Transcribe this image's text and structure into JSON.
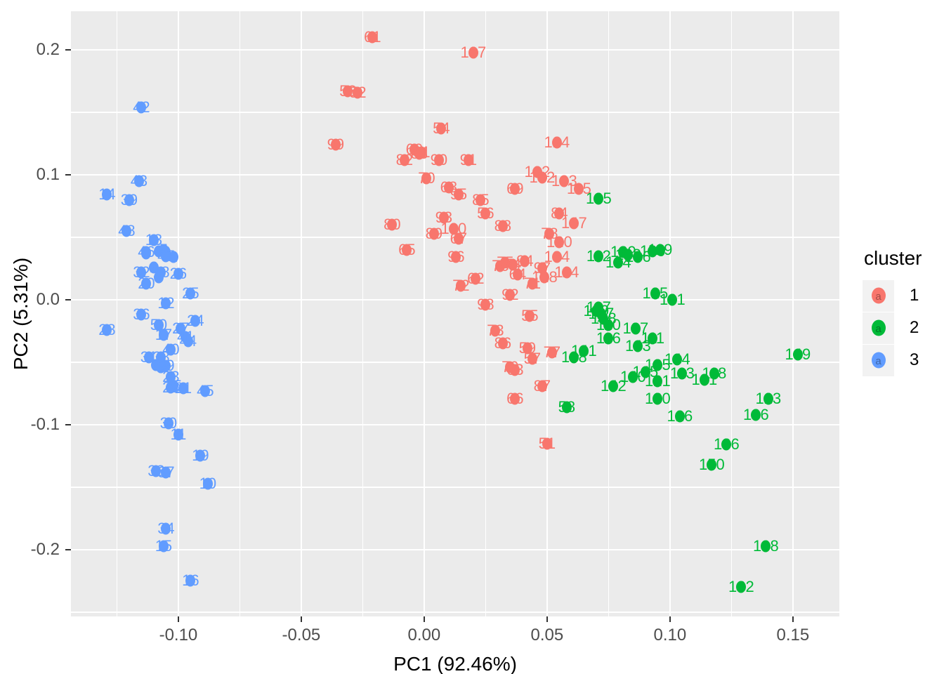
{
  "chart_data": {
    "type": "scatter",
    "title": "",
    "xlabel": "PC1 (92.46%)",
    "ylabel": "PC2 (5.31%)",
    "panel_bg": "#EBEBEB",
    "grid_color": "#FFFFFF",
    "tick_color": "#333333",
    "tick_label_color": "#4D4D4D",
    "x_domain": [
      -0.1437,
      0.1689
    ],
    "y_domain": [
      -0.2534,
      0.2309
    ],
    "x_tick_values": [
      -0.1,
      -0.05,
      0.0,
      0.05,
      0.1,
      0.15
    ],
    "x_tick_labels": [
      "-0.10",
      "-0.05",
      "0.00",
      "0.05",
      "0.10",
      "0.15"
    ],
    "y_tick_values": [
      -0.2,
      -0.1,
      0.0,
      0.1,
      0.2
    ],
    "y_tick_labels": [
      "-0.2",
      "-0.1",
      "0.0",
      "0.1",
      "0.2"
    ],
    "x_minor_values": [
      -0.125,
      -0.075,
      -0.025,
      0.025,
      0.075,
      0.125
    ],
    "y_minor_values": [
      -0.25,
      -0.15,
      -0.05,
      0.05,
      0.15
    ],
    "legend": {
      "title": "cluster",
      "glyph_letter": "a",
      "entries": [
        {
          "label": "1",
          "color": "#F8766D"
        },
        {
          "label": "2",
          "color": "#00BA38"
        },
        {
          "label": "3",
          "color": "#619CFF"
        }
      ]
    },
    "cluster_colors": {
      "1": "#F8766D",
      "2": "#00BA38",
      "3": "#619CFF"
    },
    "points": [
      {
        "id": "1",
        "c": 3,
        "x": -0.102,
        "y": 0.034
      },
      {
        "id": "2",
        "c": 3,
        "x": -0.11,
        "y": 0.026
      },
      {
        "id": "3",
        "c": 3,
        "x": -0.108,
        "y": 0.039
      },
      {
        "id": "4",
        "c": 3,
        "x": -0.113,
        "y": 0.037
      },
      {
        "id": "5",
        "c": 3,
        "x": -0.106,
        "y": 0.04
      },
      {
        "id": "6",
        "c": 3,
        "x": -0.105,
        "y": 0.038
      },
      {
        "id": "7",
        "c": 3,
        "x": -0.108,
        "y": 0.018
      },
      {
        "id": "8",
        "c": 3,
        "x": -0.109,
        "y": -0.052
      },
      {
        "id": "9",
        "c": 3,
        "x": -0.107,
        "y": -0.054
      },
      {
        "id": "10",
        "c": 3,
        "x": -0.088,
        "y": -0.147
      },
      {
        "id": "11",
        "c": 3,
        "x": -0.1,
        "y": -0.108
      },
      {
        "id": "12",
        "c": 3,
        "x": -0.105,
        "y": -0.003
      },
      {
        "id": "13",
        "c": 3,
        "x": -0.11,
        "y": 0.048
      },
      {
        "id": "14",
        "c": 3,
        "x": -0.129,
        "y": 0.084
      },
      {
        "id": "15",
        "c": 3,
        "x": -0.106,
        "y": -0.197
      },
      {
        "id": "16",
        "c": 3,
        "x": -0.095,
        "y": -0.225
      },
      {
        "id": "17",
        "c": 3,
        "x": -0.106,
        "y": -0.028
      },
      {
        "id": "18",
        "c": 3,
        "x": -0.107,
        "y": 0.022
      },
      {
        "id": "19",
        "c": 3,
        "x": -0.091,
        "y": -0.125
      },
      {
        "id": "20",
        "c": 3,
        "x": -0.113,
        "y": 0.013
      },
      {
        "id": "21",
        "c": 3,
        "x": -0.098,
        "y": -0.071
      },
      {
        "id": "22",
        "c": 3,
        "x": -0.103,
        "y": -0.07
      },
      {
        "id": "23",
        "c": 3,
        "x": -0.103,
        "y": -0.062
      },
      {
        "id": "24",
        "c": 3,
        "x": -0.093,
        "y": -0.017
      },
      {
        "id": "25",
        "c": 3,
        "x": -0.095,
        "y": 0.005
      },
      {
        "id": "26",
        "c": 3,
        "x": -0.1,
        "y": 0.021
      },
      {
        "id": "27",
        "c": 3,
        "x": -0.099,
        "y": -0.023
      },
      {
        "id": "28",
        "c": 3,
        "x": -0.129,
        "y": -0.024
      },
      {
        "id": "29",
        "c": 3,
        "x": -0.105,
        "y": -0.053
      },
      {
        "id": "30",
        "c": 3,
        "x": -0.104,
        "y": -0.099
      },
      {
        "id": "31",
        "c": 3,
        "x": -0.112,
        "y": -0.046
      },
      {
        "id": "32",
        "c": 3,
        "x": -0.115,
        "y": 0.022
      },
      {
        "id": "33",
        "c": 3,
        "x": -0.109,
        "y": -0.137
      },
      {
        "id": "34",
        "c": 3,
        "x": -0.105,
        "y": -0.183
      },
      {
        "id": "35",
        "c": 3,
        "x": -0.102,
        "y": -0.069
      },
      {
        "id": "36",
        "c": 3,
        "x": -0.115,
        "y": -0.012
      },
      {
        "id": "37",
        "c": 3,
        "x": -0.105,
        "y": -0.138
      },
      {
        "id": "38",
        "c": 3,
        "x": -0.107,
        "y": -0.046
      },
      {
        "id": "39",
        "c": 3,
        "x": -0.12,
        "y": 0.08
      },
      {
        "id": "40",
        "c": 3,
        "x": -0.103,
        "y": -0.04
      },
      {
        "id": "41",
        "c": 3,
        "x": -0.097,
        "y": -0.03
      },
      {
        "id": "42",
        "c": 3,
        "x": -0.115,
        "y": 0.154
      },
      {
        "id": "43",
        "c": 3,
        "x": -0.116,
        "y": 0.095
      },
      {
        "id": "44",
        "c": 3,
        "x": -0.096,
        "y": -0.033
      },
      {
        "id": "45",
        "c": 3,
        "x": -0.089,
        "y": -0.073
      },
      {
        "id": "46",
        "c": 3,
        "x": -0.113,
        "y": 0.038
      },
      {
        "id": "47",
        "c": 3,
        "x": -0.105,
        "y": 0.035
      },
      {
        "id": "48",
        "c": 3,
        "x": -0.121,
        "y": 0.055
      },
      {
        "id": "49",
        "c": 3,
        "x": -0.107,
        "y": -0.054
      },
      {
        "id": "50",
        "c": 3,
        "x": -0.108,
        "y": -0.02
      },
      {
        "id": "51",
        "c": 1,
        "x": 0.05,
        "y": -0.115
      },
      {
        "id": "52",
        "c": 1,
        "x": -0.027,
        "y": 0.166
      },
      {
        "id": "53",
        "c": 1,
        "x": -0.031,
        "y": 0.167
      },
      {
        "id": "54",
        "c": 1,
        "x": 0.007,
        "y": 0.137
      },
      {
        "id": "55",
        "c": 1,
        "x": 0.043,
        "y": -0.013
      },
      {
        "id": "56",
        "c": 1,
        "x": 0.025,
        "y": 0.069
      },
      {
        "id": "57",
        "c": 1,
        "x": 0.044,
        "y": -0.047
      },
      {
        "id": "59",
        "c": 1,
        "x": 0.042,
        "y": -0.039
      },
      {
        "id": "60",
        "c": 1,
        "x": -0.004,
        "y": 0.12
      },
      {
        "id": "61",
        "c": 1,
        "x": -0.021,
        "y": 0.21
      },
      {
        "id": "62",
        "c": 1,
        "x": 0.021,
        "y": 0.017
      },
      {
        "id": "63",
        "c": 1,
        "x": 0.037,
        "y": -0.056
      },
      {
        "id": "64",
        "c": 1,
        "x": 0.038,
        "y": 0.02
      },
      {
        "id": "65",
        "c": 1,
        "x": -0.007,
        "y": 0.04
      },
      {
        "id": "66",
        "c": 1,
        "x": 0.037,
        "y": -0.079
      },
      {
        "id": "67",
        "c": 1,
        "x": 0.014,
        "y": 0.049
      },
      {
        "id": "68",
        "c": 1,
        "x": 0.01,
        "y": 0.09
      },
      {
        "id": "69",
        "c": 1,
        "x": 0.037,
        "y": 0.089
      },
      {
        "id": "70",
        "c": 1,
        "x": 0.001,
        "y": 0.097
      },
      {
        "id": "71",
        "c": 1,
        "x": 0.044,
        "y": 0.013
      },
      {
        "id": "72",
        "c": 1,
        "x": 0.015,
        "y": 0.011
      },
      {
        "id": "73",
        "c": 1,
        "x": 0.029,
        "y": -0.025
      },
      {
        "id": "74",
        "c": 1,
        "x": 0.036,
        "y": 0.028
      },
      {
        "id": "75",
        "c": 1,
        "x": 0.033,
        "y": 0.03
      },
      {
        "id": "76",
        "c": 1,
        "x": 0.031,
        "y": 0.027
      },
      {
        "id": "77",
        "c": 1,
        "x": 0.052,
        "y": -0.042
      },
      {
        "id": "78",
        "c": 1,
        "x": 0.051,
        "y": 0.053
      },
      {
        "id": "79",
        "c": 1,
        "x": 0.035,
        "y": -0.054
      },
      {
        "id": "80",
        "c": 1,
        "x": -0.013,
        "y": 0.06
      },
      {
        "id": "81",
        "c": 1,
        "x": -0.001,
        "y": 0.118
      },
      {
        "id": "82",
        "c": 1,
        "x": -0.008,
        "y": 0.112
      },
      {
        "id": "83",
        "c": 1,
        "x": -0.002,
        "y": 0.117
      },
      {
        "id": "84",
        "c": 1,
        "x": 0.055,
        "y": 0.069
      },
      {
        "id": "85",
        "c": 1,
        "x": 0.023,
        "y": 0.08
      },
      {
        "id": "86",
        "c": 1,
        "x": 0.032,
        "y": -0.035
      },
      {
        "id": "87",
        "c": 1,
        "x": 0.048,
        "y": -0.069
      },
      {
        "id": "88",
        "c": 1,
        "x": 0.032,
        "y": 0.059
      },
      {
        "id": "89",
        "c": 1,
        "x": 0.004,
        "y": 0.053
      },
      {
        "id": "90",
        "c": 1,
        "x": 0.006,
        "y": 0.112
      },
      {
        "id": "91",
        "c": 1,
        "x": 0.018,
        "y": 0.112
      },
      {
        "id": "92",
        "c": 1,
        "x": 0.035,
        "y": 0.004
      },
      {
        "id": "93",
        "c": 1,
        "x": 0.008,
        "y": 0.066
      },
      {
        "id": "94",
        "c": 1,
        "x": 0.041,
        "y": 0.031
      },
      {
        "id": "95",
        "c": 1,
        "x": 0.014,
        "y": 0.084
      },
      {
        "id": "96",
        "c": 1,
        "x": 0.013,
        "y": 0.034
      },
      {
        "id": "97",
        "c": 1,
        "x": 0.048,
        "y": 0.025
      },
      {
        "id": "98",
        "c": 1,
        "x": 0.025,
        "y": -0.004
      },
      {
        "id": "99",
        "c": 1,
        "x": -0.036,
        "y": 0.124
      },
      {
        "id": "100",
        "c": 1,
        "x": 0.012,
        "y": 0.057
      },
      {
        "id": "102",
        "c": 1,
        "x": 0.048,
        "y": 0.098
      },
      {
        "id": "103",
        "c": 1,
        "x": 0.057,
        "y": 0.095
      },
      {
        "id": "107",
        "c": 1,
        "x": 0.02,
        "y": 0.198
      },
      {
        "id": "114",
        "c": 1,
        "x": 0.058,
        "y": 0.022
      },
      {
        "id": "115",
        "c": 1,
        "x": 0.063,
        "y": 0.089
      },
      {
        "id": "120",
        "c": 1,
        "x": 0.055,
        "y": 0.046
      },
      {
        "id": "122",
        "c": 1,
        "x": 0.046,
        "y": 0.102
      },
      {
        "id": "124",
        "c": 1,
        "x": 0.054,
        "y": 0.126
      },
      {
        "id": "128",
        "c": 1,
        "x": 0.049,
        "y": 0.018
      },
      {
        "id": "134",
        "c": 1,
        "x": 0.054,
        "y": 0.034
      },
      {
        "id": "147",
        "c": 1,
        "x": 0.061,
        "y": 0.061
      },
      {
        "id": "58",
        "c": 2,
        "x": 0.058,
        "y": -0.086
      },
      {
        "id": "101",
        "c": 2,
        "x": 0.101,
        "y": 0.0
      },
      {
        "id": "104",
        "c": 2,
        "x": 0.079,
        "y": 0.03
      },
      {
        "id": "105",
        "c": 2,
        "x": 0.071,
        "y": 0.081
      },
      {
        "id": "106",
        "c": 2,
        "x": 0.135,
        "y": -0.092
      },
      {
        "id": "108",
        "c": 2,
        "x": 0.139,
        "y": -0.197
      },
      {
        "id": "109",
        "c": 2,
        "x": 0.093,
        "y": 0.039
      },
      {
        "id": "110",
        "c": 2,
        "x": 0.075,
        "y": -0.02
      },
      {
        "id": "111",
        "c": 2,
        "x": 0.093,
        "y": -0.031
      },
      {
        "id": "112",
        "c": 2,
        "x": 0.071,
        "y": 0.035
      },
      {
        "id": "113",
        "c": 2,
        "x": 0.105,
        "y": -0.059
      },
      {
        "id": "116",
        "c": 2,
        "x": 0.075,
        "y": -0.031
      },
      {
        "id": "117",
        "c": 2,
        "x": 0.071,
        "y": -0.006
      },
      {
        "id": "118",
        "c": 2,
        "x": 0.118,
        "y": -0.059
      },
      {
        "id": "119",
        "c": 2,
        "x": 0.096,
        "y": 0.04
      },
      {
        "id": "121",
        "c": 2,
        "x": 0.095,
        "y": -0.065
      },
      {
        "id": "123",
        "c": 2,
        "x": 0.14,
        "y": -0.079
      },
      {
        "id": "125",
        "c": 2,
        "x": 0.094,
        "y": 0.005
      },
      {
        "id": "126",
        "c": 2,
        "x": 0.104,
        "y": -0.093
      },
      {
        "id": "127",
        "c": 2,
        "x": 0.072,
        "y": -0.011
      },
      {
        "id": "129",
        "c": 2,
        "x": 0.081,
        "y": 0.038
      },
      {
        "id": "130",
        "c": 2,
        "x": 0.095,
        "y": -0.079
      },
      {
        "id": "131",
        "c": 2,
        "x": 0.114,
        "y": -0.064
      },
      {
        "id": "132",
        "c": 2,
        "x": 0.129,
        "y": -0.23
      },
      {
        "id": "133",
        "c": 2,
        "x": 0.083,
        "y": 0.036
      },
      {
        "id": "135",
        "c": 2,
        "x": 0.095,
        "y": -0.052
      },
      {
        "id": "136",
        "c": 2,
        "x": 0.123,
        "y": -0.116
      },
      {
        "id": "137",
        "c": 2,
        "x": 0.086,
        "y": -0.023
      },
      {
        "id": "138",
        "c": 2,
        "x": 0.073,
        "y": -0.015
      },
      {
        "id": "139",
        "c": 2,
        "x": 0.07,
        "y": -0.009
      },
      {
        "id": "140",
        "c": 2,
        "x": 0.085,
        "y": -0.062
      },
      {
        "id": "141",
        "c": 2,
        "x": 0.065,
        "y": -0.041
      },
      {
        "id": "142",
        "c": 2,
        "x": 0.077,
        "y": -0.069
      },
      {
        "id": "143",
        "c": 2,
        "x": 0.087,
        "y": -0.037
      },
      {
        "id": "144",
        "c": 2,
        "x": 0.103,
        "y": -0.048
      },
      {
        "id": "145",
        "c": 2,
        "x": 0.09,
        "y": -0.058
      },
      {
        "id": "146",
        "c": 2,
        "x": 0.087,
        "y": 0.034
      },
      {
        "id": "148",
        "c": 2,
        "x": 0.061,
        "y": -0.046
      },
      {
        "id": "149",
        "c": 2,
        "x": 0.152,
        "y": -0.044
      },
      {
        "id": "150",
        "c": 2,
        "x": 0.117,
        "y": -0.132
      }
    ]
  }
}
